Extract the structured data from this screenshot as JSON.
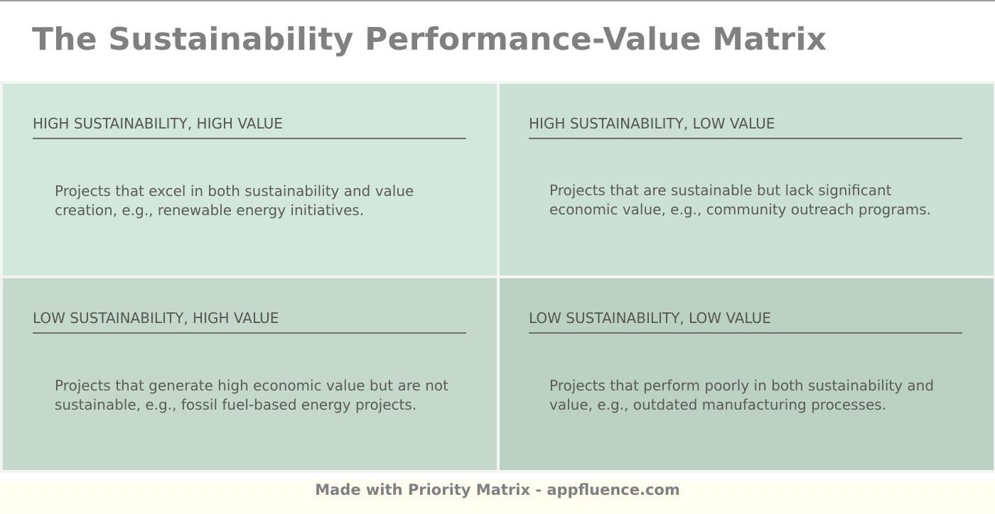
{
  "title": "The Sustainability Performance-Value Matrix",
  "colors": {
    "title": "#808080",
    "q1_bg": "#d3e8dc",
    "q2_bg": "#cce1d5",
    "q3_bg": "#c4d9cb",
    "q4_bg": "#bbd1c3",
    "footer_bg": "#fefff0"
  },
  "quadrants": [
    {
      "heading": "HIGH SUSTAINABILITY, HIGH VALUE",
      "description": "Projects that excel in both sustainability and value creation, e.g., renewable energy initiatives."
    },
    {
      "heading": "HIGH SUSTAINABILITY, LOW VALUE",
      "description": "Projects that are sustainable but lack significant economic value, e.g., community outreach programs."
    },
    {
      "heading": "LOW SUSTAINABILITY, HIGH VALUE",
      "description": "Projects that generate high economic value but are not sustainable, e.g., fossil fuel-based energy projects."
    },
    {
      "heading": "LOW SUSTAINABILITY, LOW VALUE",
      "description": "Projects that perform poorly in both sustainability and value, e.g., outdated manufacturing processes."
    }
  ],
  "footer": {
    "text": "Made with Priority Matrix - appfluence.com"
  }
}
